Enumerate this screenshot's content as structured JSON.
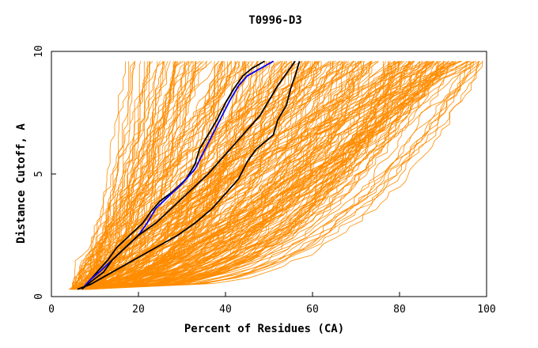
{
  "chart_data": {
    "type": "line",
    "title": "T0996-D3",
    "xlabel": "Percent of Residues (CA)",
    "ylabel": "Distance Cutoff, A",
    "xlim": [
      0,
      100
    ],
    "ylim": [
      0,
      10
    ],
    "x_ticks": [
      "0",
      "20",
      "40",
      "60",
      "80",
      "100"
    ],
    "y_ticks": [
      "0",
      "5",
      "10"
    ],
    "grid": false,
    "legend": "none",
    "colors": {
      "background_models": "#ff8c00",
      "highlight_black": "#000000",
      "highlight_blue": "#0000ff"
    },
    "highlight_series": [
      {
        "color": "#000000",
        "points": [
          [
            7,
            0.3
          ],
          [
            9,
            0.7
          ],
          [
            11,
            1.1
          ],
          [
            13,
            1.5
          ],
          [
            15,
            2.0
          ],
          [
            18,
            2.5
          ],
          [
            21,
            3.0
          ],
          [
            23,
            3.5
          ],
          [
            25,
            3.9
          ],
          [
            28,
            4.3
          ],
          [
            31,
            4.8
          ],
          [
            33,
            5.4
          ],
          [
            34,
            6.0
          ],
          [
            36,
            6.6
          ],
          [
            38,
            7.2
          ],
          [
            40,
            7.9
          ],
          [
            42,
            8.5
          ],
          [
            44,
            9.0
          ],
          [
            46,
            9.3
          ],
          [
            49,
            9.6
          ]
        ]
      },
      {
        "color": "#0000ff",
        "points": [
          [
            7,
            0.3
          ],
          [
            9,
            0.7
          ],
          [
            11,
            1.0
          ],
          [
            14,
            1.5
          ],
          [
            17,
            2.0
          ],
          [
            20,
            2.5
          ],
          [
            22,
            3.0
          ],
          [
            24,
            3.6
          ],
          [
            27,
            4.1
          ],
          [
            30,
            4.6
          ],
          [
            33,
            5.2
          ],
          [
            35,
            5.9
          ],
          [
            37,
            6.6
          ],
          [
            39,
            7.3
          ],
          [
            41,
            8.0
          ],
          [
            43,
            8.6
          ],
          [
            45,
            9.0
          ],
          [
            48,
            9.3
          ],
          [
            51,
            9.6
          ]
        ]
      },
      {
        "color": "#000000",
        "points": [
          [
            7,
            0.3
          ],
          [
            9,
            0.6
          ],
          [
            12,
            1.0
          ],
          [
            14,
            1.5
          ],
          [
            17,
            2.0
          ],
          [
            20,
            2.5
          ],
          [
            24,
            3.0
          ],
          [
            27,
            3.5
          ],
          [
            30,
            4.0
          ],
          [
            33,
            4.5
          ],
          [
            36,
            5.0
          ],
          [
            39,
            5.6
          ],
          [
            42,
            6.2
          ],
          [
            45,
            6.8
          ],
          [
            48,
            7.4
          ],
          [
            50,
            8.0
          ],
          [
            52,
            8.6
          ],
          [
            54,
            9.1
          ],
          [
            56,
            9.6
          ]
        ]
      },
      {
        "color": "#000000",
        "points": [
          [
            6,
            0.3
          ],
          [
            9,
            0.5
          ],
          [
            12,
            0.8
          ],
          [
            16,
            1.2
          ],
          [
            20,
            1.6
          ],
          [
            24,
            2.0
          ],
          [
            29,
            2.5
          ],
          [
            33,
            3.0
          ],
          [
            37,
            3.6
          ],
          [
            40,
            4.2
          ],
          [
            43,
            4.8
          ],
          [
            45,
            5.5
          ],
          [
            47,
            6.0
          ],
          [
            49,
            6.3
          ],
          [
            51,
            6.6
          ],
          [
            52,
            7.2
          ],
          [
            54,
            7.8
          ],
          [
            55,
            8.5
          ],
          [
            56,
            9.0
          ],
          [
            57,
            9.6
          ]
        ]
      }
    ]
  }
}
